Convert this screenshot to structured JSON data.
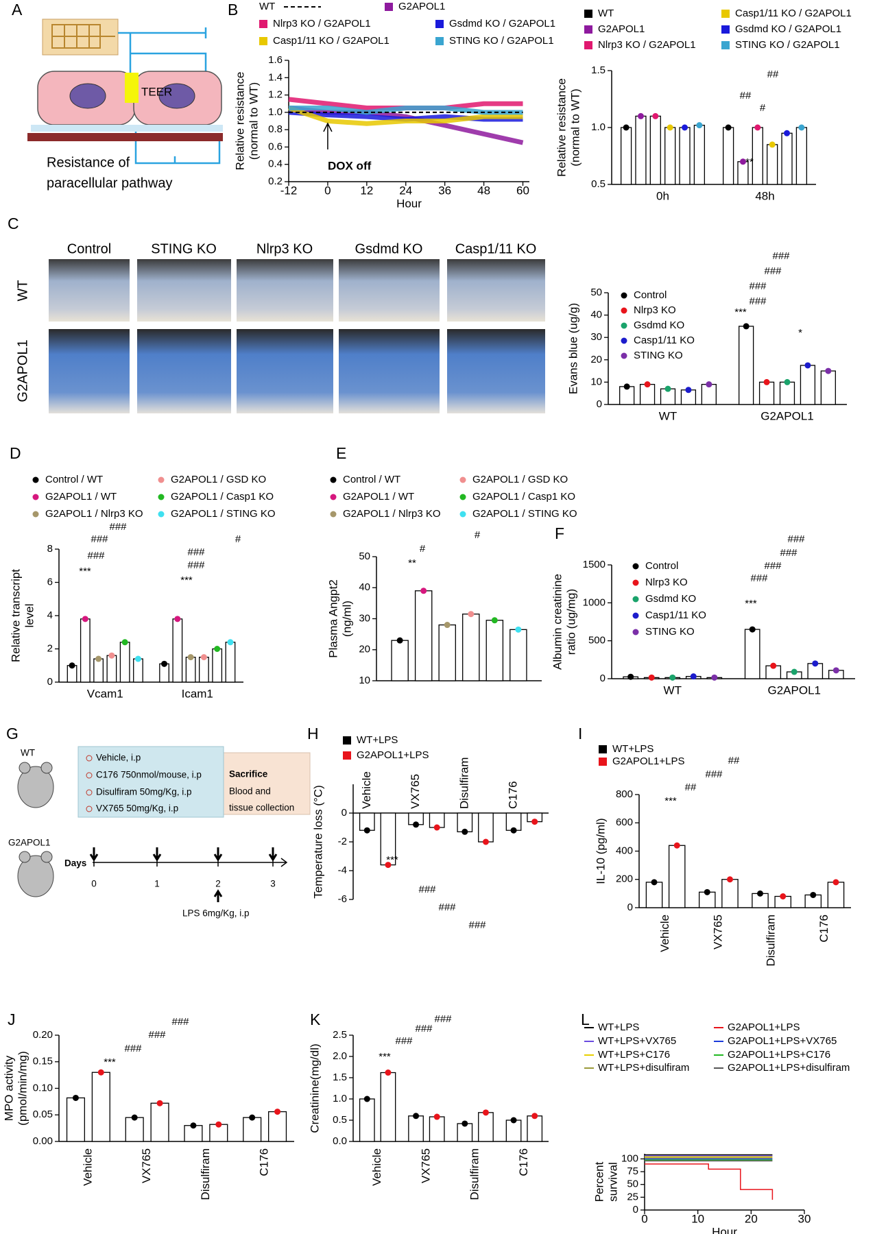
{
  "panel_a": {
    "label": "A",
    "teer": "TEER",
    "caption": [
      "Resistance of",
      "paracellular pathway"
    ]
  },
  "panel_c": {
    "columns": [
      "Control",
      "STING KO",
      "Nlrp3 KO",
      "Gsdmd KO",
      "Casp1/11 KO"
    ],
    "rows": [
      "WT",
      "G2APOL1"
    ]
  },
  "panel_g": {
    "label": "G",
    "groups": [
      "WT",
      "G2APOL1"
    ],
    "treatments": [
      "Vehicle, i.p",
      "C176 750nmol/mouse, i.p",
      "Disulfiram 50mg/Kg, i.p",
      "VX765 50mg/Kg, i.p"
    ],
    "endpoint": [
      "Sacrifice",
      "Blood and",
      "tissue collection"
    ],
    "axis_label": "Days",
    "days": [
      0,
      1,
      2,
      3
    ],
    "lps": "LPS 6mg/Kg, i.p"
  },
  "chart_data": [
    {
      "type": "line",
      "label": "B",
      "x": [
        -12,
        0,
        12,
        24,
        36,
        48,
        60
      ],
      "xlim": [
        -12,
        62
      ],
      "xticks": [
        -12,
        0,
        12,
        24,
        36,
        48,
        60
      ],
      "ylim": [
        0.2,
        1.6
      ],
      "yticks": [
        0.2,
        0.4,
        0.6,
        0.8,
        {
          "value": 1,
          "label": "1.0"
        },
        1.2,
        1.4,
        1.6
      ],
      "xlabel": "Hour",
      "ylabel": [
        "Relative resistance",
        "(normal to WT)"
      ],
      "annotations": [
        "DOX off"
      ],
      "series": [
        {
          "name": "WT",
          "color": "#000000",
          "dashed": true,
          "values": [
            1,
            1,
            1,
            1,
            1,
            1,
            1
          ]
        },
        {
          "name": "G2APOL1",
          "color": "#8e1a9e",
          "values": [
            1.05,
            1.0,
            1.0,
            0.95,
            0.85,
            0.75,
            0.65
          ]
        },
        {
          "name": "Nlrp3 KO / G2APOL1",
          "color": "#e0186f",
          "values": [
            1.15,
            1.1,
            1.05,
            1.05,
            1.05,
            1.1,
            1.1
          ]
        },
        {
          "name": "Gsdmd KO / G2APOL1",
          "color": "#1a1adb",
          "values": [
            1.0,
            0.97,
            0.95,
            0.92,
            0.95,
            0.92,
            0.92
          ]
        },
        {
          "name": "Casp1/11 KO / G2APOL1",
          "color": "#e8c800",
          "values": [
            1.05,
            0.9,
            0.87,
            0.9,
            0.9,
            0.95,
            0.95
          ]
        },
        {
          "name": "STING KO / G2APOL1",
          "color": "#3aa5d0",
          "values": [
            1.05,
            1.05,
            1.0,
            1.05,
            1.05,
            1.0,
            1.0
          ]
        }
      ]
    },
    {
      "type": "bar",
      "categories": [
        "0h",
        "48h"
      ],
      "ylim": [
        0.5,
        1.5
      ],
      "yticks": [
        0.5,
        {
          "value": 1,
          "label": "1.0"
        },
        1.5
      ],
      "ylabel": [
        "Relative resistance",
        "(normal to WT)"
      ],
      "annotations": [
        "**",
        "##",
        "#",
        "##"
      ],
      "series": [
        {
          "name": "WT",
          "color": "#000000",
          "values": [
            1.0,
            1.0
          ]
        },
        {
          "name": "G2APOL1",
          "color": "#8e1a9e",
          "values": [
            1.1,
            0.7
          ]
        },
        {
          "name": "Nlrp3 KO / G2APOL1",
          "color": "#e0186f",
          "values": [
            1.1,
            1.0
          ]
        },
        {
          "name": "Casp1/11 KO / G2APOL1",
          "color": "#e8c800",
          "values": [
            1.0,
            0.85
          ]
        },
        {
          "name": "Gsdmd KO / G2APOL1",
          "color": "#1a1adb",
          "values": [
            1.0,
            0.95
          ]
        },
        {
          "name": "STING KO / G2APOL1",
          "color": "#3aa5d0",
          "values": [
            1.02,
            1.0
          ]
        }
      ]
    },
    {
      "type": "bar",
      "label": "C",
      "categories": [
        "WT",
        "G2APOL1"
      ],
      "ylim": [
        0,
        50
      ],
      "yticks": [
        0,
        10,
        20,
        30,
        40,
        50
      ],
      "ylabel": [
        "Evans blue (ug/g)"
      ],
      "annotations": [
        "###",
        "###",
        "###",
        "###",
        "***",
        "*"
      ],
      "series": [
        {
          "name": "Control",
          "color": "#000000",
          "values": [
            8,
            35
          ]
        },
        {
          "name": "Nlrp3 KO",
          "color": "#e8141b",
          "values": [
            9,
            10
          ]
        },
        {
          "name": "Gsdmd KO",
          "color": "#1aa36b",
          "values": [
            7,
            10
          ]
        },
        {
          "name": "Casp1/11 KO",
          "color": "#1c1ccc",
          "values": [
            6.5,
            17.5
          ]
        },
        {
          "name": "STING KO",
          "color": "#7b2fa8",
          "values": [
            9,
            15
          ]
        }
      ]
    },
    {
      "type": "bar",
      "label": "D",
      "categories": [
        "Vcam1",
        "Icam1"
      ],
      "ylim": [
        0,
        8
      ],
      "yticks": [
        0,
        2,
        4,
        6,
        8
      ],
      "ylabel": [
        "Relative transcript",
        "level"
      ],
      "annotations": [
        "###",
        "###",
        "###",
        "***",
        "#",
        "###",
        "###",
        "***"
      ],
      "series": [
        {
          "name": "Control / WT",
          "color": "#000000",
          "values": [
            1.0,
            1.1
          ]
        },
        {
          "name": "G2APOL1 / WT",
          "color": "#d6177e",
          "values": [
            3.8,
            3.8
          ]
        },
        {
          "name": "G2APOL1 / Nlrp3 KO",
          "color": "#a6976a",
          "values": [
            1.4,
            1.5
          ]
        },
        {
          "name": "G2APOL1 / GSD KO",
          "color": "#f08f8f",
          "values": [
            1.6,
            1.5
          ]
        },
        {
          "name": "G2APOL1 / Casp1 KO",
          "color": "#22b822",
          "values": [
            2.4,
            2.0
          ]
        },
        {
          "name": "G2APOL1 / STING KO",
          "color": "#3fe0f0",
          "values": [
            1.4,
            2.4
          ]
        }
      ]
    },
    {
      "type": "bar",
      "label": "E",
      "categories": [
        null
      ],
      "ylim": [
        10,
        50
      ],
      "yticks": [
        10,
        20,
        30,
        40,
        50
      ],
      "ylabel": [
        "Plasma Angpt2",
        "(ng/ml)"
      ],
      "annotations": [
        "#",
        "#",
        "**"
      ],
      "series": [
        {
          "name": "Control / WT",
          "color": "#000000",
          "values": [
            23
          ]
        },
        {
          "name": "G2APOL1 / WT",
          "color": "#d6177e",
          "values": [
            39
          ]
        },
        {
          "name": "G2APOL1 / Nlrp3 KO",
          "color": "#a6976a",
          "values": [
            28
          ]
        },
        {
          "name": "G2APOL1 / GSD KO",
          "color": "#f08f8f",
          "values": [
            31.5
          ]
        },
        {
          "name": "G2APOL1 / Casp1 KO",
          "color": "#22b822",
          "values": [
            29.5
          ]
        },
        {
          "name": "G2APOL1 / STING KO",
          "color": "#3fe0f0",
          "values": [
            26.5
          ]
        }
      ]
    },
    {
      "type": "bar",
      "label": "F",
      "categories": [
        "WT",
        "G2APOL1"
      ],
      "ylim": [
        0,
        1500
      ],
      "yticks": [
        0,
        500,
        1000,
        1500
      ],
      "ylabel": [
        "Albumin creatinine",
        "ratio (ug/mg)"
      ],
      "annotations": [
        "###",
        "###",
        "###",
        "###",
        "***"
      ],
      "series": [
        {
          "name": "Control",
          "color": "#000000",
          "values": [
            25,
            650
          ]
        },
        {
          "name": "Nlrp3 KO",
          "color": "#e8141b",
          "values": [
            15,
            170
          ]
        },
        {
          "name": "Gsdmd KO",
          "color": "#1aa36b",
          "values": [
            15,
            90
          ]
        },
        {
          "name": "Casp1/11 KO",
          "color": "#1c1ccc",
          "values": [
            30,
            200
          ]
        },
        {
          "name": "STING KO",
          "color": "#7b2fa8",
          "values": [
            15,
            110
          ]
        }
      ]
    },
    {
      "type": "bar",
      "label": "H",
      "categories": [
        "Vehicle",
        "VX765",
        "Disulfiram",
        "C176"
      ],
      "ylim": [
        -6,
        2
      ],
      "yticks": [
        0,
        -2,
        -4,
        -6
      ],
      "ylabel": [
        "Temperature loss (°C)"
      ],
      "annotations": [
        "***",
        "###",
        "###",
        "###"
      ],
      "series": [
        {
          "name": "WT+LPS",
          "color": "#000000",
          "values": [
            -1.2,
            -0.8,
            -1.3,
            -1.2
          ]
        },
        {
          "name": "G2APOL1+LPS",
          "color": "#e8141b",
          "values": [
            -3.6,
            -1.0,
            -2.0,
            -0.6
          ]
        }
      ]
    },
    {
      "type": "bar",
      "label": "I",
      "categories": [
        "Vehicle",
        "VX765",
        "Disulfiram",
        "C176"
      ],
      "ylim": [
        0,
        800
      ],
      "yticks": [
        0,
        200,
        400,
        600,
        800
      ],
      "ylabel": [
        "IL-10 (pg/ml)"
      ],
      "annotations": [
        "***",
        "##",
        "###",
        "##"
      ],
      "series": [
        {
          "name": "WT+LPS",
          "color": "#000000",
          "values": [
            180,
            110,
            100,
            90
          ]
        },
        {
          "name": "G2APOL1+LPS",
          "color": "#e8141b",
          "values": [
            440,
            200,
            80,
            180
          ]
        }
      ]
    },
    {
      "type": "bar",
      "label": "J",
      "categories": [
        "Vehicle",
        "VX765",
        "Disulfiram",
        "C176"
      ],
      "ylim": [
        0,
        0.2
      ],
      "yticks": [
        {
          "value": 0,
          "label": "0.00"
        },
        0.05,
        {
          "value": 0.1,
          "label": "0.10"
        },
        0.15,
        {
          "value": 0.2,
          "label": "0.20"
        }
      ],
      "ylabel": [
        "MPO activity",
        "(pmol/min/mg)"
      ],
      "annotations": [
        "***",
        "###",
        "###",
        "###"
      ],
      "series": [
        {
          "name": "WT+LPS",
          "color": "#000000",
          "values": [
            0.082,
            0.045,
            0.03,
            0.045
          ]
        },
        {
          "name": "G2APOL1+LPS",
          "color": "#e8141b",
          "values": [
            0.13,
            0.072,
            0.032,
            0.056
          ]
        }
      ]
    },
    {
      "type": "bar",
      "label": "K",
      "categories": [
        "Vehicle",
        "VX765",
        "Disulfiram",
        "C176"
      ],
      "ylim": [
        0,
        2.5
      ],
      "yticks": [
        {
          "value": 0,
          "label": "0.0"
        },
        0.5,
        {
          "value": 1,
          "label": "1.0"
        },
        1.5,
        {
          "value": 2,
          "label": "2.0"
        },
        2.5
      ],
      "ylabel": [
        "Creatinine(mg/dl)"
      ],
      "annotations": [
        "***",
        "###",
        "###",
        "###"
      ],
      "series": [
        {
          "name": "WT+LPS",
          "color": "#000000",
          "values": [
            1.0,
            0.6,
            0.42,
            0.5
          ]
        },
        {
          "name": "G2APOL1+LPS",
          "color": "#e8141b",
          "values": [
            1.62,
            0.58,
            0.68,
            0.6
          ]
        }
      ]
    },
    {
      "type": "survival",
      "label": "L",
      "xlim": [
        0,
        30
      ],
      "xticks": [
        0,
        10,
        20,
        30
      ],
      "ylim": [
        0,
        110
      ],
      "yticks": [
        0,
        25,
        50,
        75,
        100
      ],
      "xlabel": "Hour",
      "ylabel": [
        "Percent",
        "survival"
      ],
      "series": [
        {
          "name": "WT+LPS",
          "color": "#000000",
          "x": [
            0,
            24
          ],
          "values": [
            108,
            108
          ]
        },
        {
          "name": "WT+LPS+VX765",
          "color": "#6a4be0",
          "x": [
            0,
            24
          ],
          "values": [
            106,
            106
          ]
        },
        {
          "name": "WT+LPS+C176",
          "color": "#e8d000",
          "x": [
            0,
            24
          ],
          "values": [
            104,
            104
          ]
        },
        {
          "name": "WT+LPS+disulfiram",
          "color": "#9a9a3a",
          "x": [
            0,
            24
          ],
          "values": [
            102,
            102
          ]
        },
        {
          "name": "G2APOL1+LPS",
          "color": "#e8141b",
          "x": [
            0,
            12,
            12,
            18,
            18,
            24,
            24
          ],
          "values": [
            90,
            90,
            80,
            80,
            40,
            40,
            20
          ]
        },
        {
          "name": "G2APOL1+LPS+VX765",
          "color": "#1a3adb",
          "x": [
            0,
            24
          ],
          "values": [
            100,
            100
          ]
        },
        {
          "name": "G2APOL1+LPS+C176",
          "color": "#22b822",
          "x": [
            0,
            24
          ],
          "values": [
            98,
            98
          ]
        },
        {
          "name": "G2APOL1+LPS+disulfiram",
          "color": "#555555",
          "x": [
            0,
            24
          ],
          "values": [
            96,
            96
          ]
        }
      ]
    }
  ]
}
